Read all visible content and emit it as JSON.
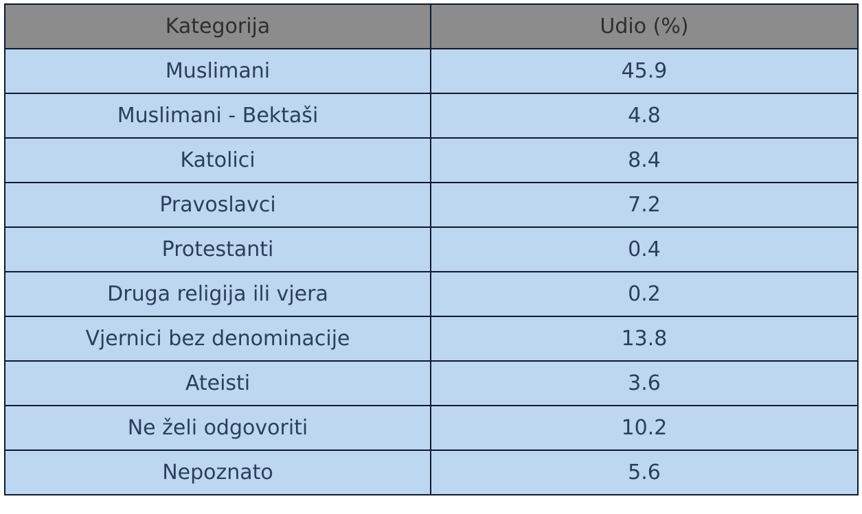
{
  "table": {
    "header": [
      "Kategorija",
      "Udio (%)"
    ],
    "rows": [
      [
        "Muslimani",
        45.9
      ],
      [
        "Muslimani - Bektaši",
        4.8
      ],
      [
        "Katolici",
        8.4
      ],
      [
        "Pravoslavci",
        7.2
      ],
      [
        "Protestanti",
        0.4
      ],
      [
        "Druga religija ili vjera",
        0.2
      ],
      [
        "Vjernici bez denominacije",
        13.8
      ],
      [
        "Ateisti",
        3.6
      ],
      [
        "Ne želi odgovoriti",
        10.2
      ],
      [
        "Nepoznato",
        5.6
      ]
    ]
  }
}
